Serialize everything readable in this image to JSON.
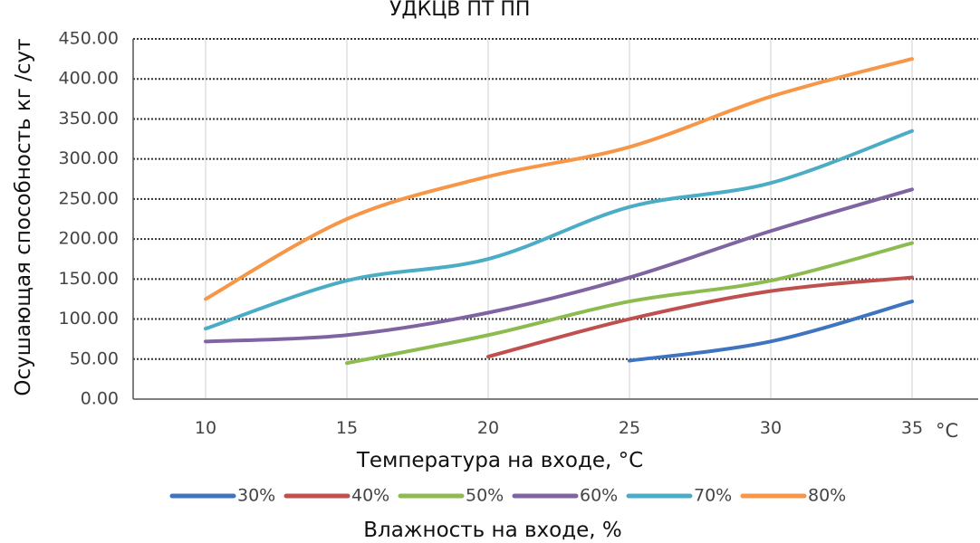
{
  "chart_data": {
    "type": "line",
    "title": "",
    "title_fragment": "УДКЦВ ПТ ПП",
    "ylabel": "Осушающая  способность кг /сут",
    "xlabel": "Температура на входе, °С",
    "x_unit": "°С",
    "legend_title": "Влажность на входе, %",
    "legend_position": "bottom",
    "grid": true,
    "ylim": [
      0,
      450
    ],
    "yticks": [
      "0.00",
      "50.00",
      "100.00",
      "150.00",
      "200.00",
      "250.00",
      "300.00",
      "350.00",
      "400.00",
      "450.00"
    ],
    "x": [
      10,
      15,
      20,
      25,
      30,
      35
    ],
    "xticks": [
      "10",
      "15",
      "20",
      "25",
      "30",
      "35"
    ],
    "series": [
      {
        "name": "30%",
        "color": "#3f74c0",
        "values": [
          null,
          null,
          null,
          48,
          72,
          122
        ]
      },
      {
        "name": "40%",
        "color": "#c0504d",
        "values": [
          null,
          null,
          53,
          100,
          135,
          152
        ]
      },
      {
        "name": "50%",
        "color": "#8dbb4f",
        "values": [
          null,
          45,
          80,
          122,
          148,
          195
        ]
      },
      {
        "name": "60%",
        "color": "#8064a2",
        "values": [
          72,
          80,
          108,
          152,
          210,
          262
        ]
      },
      {
        "name": "70%",
        "color": "#4bacc6",
        "values": [
          88,
          148,
          175,
          240,
          270,
          335
        ]
      },
      {
        "name": "80%",
        "color": "#f79646",
        "values": [
          125,
          225,
          278,
          315,
          378,
          425
        ]
      }
    ]
  }
}
